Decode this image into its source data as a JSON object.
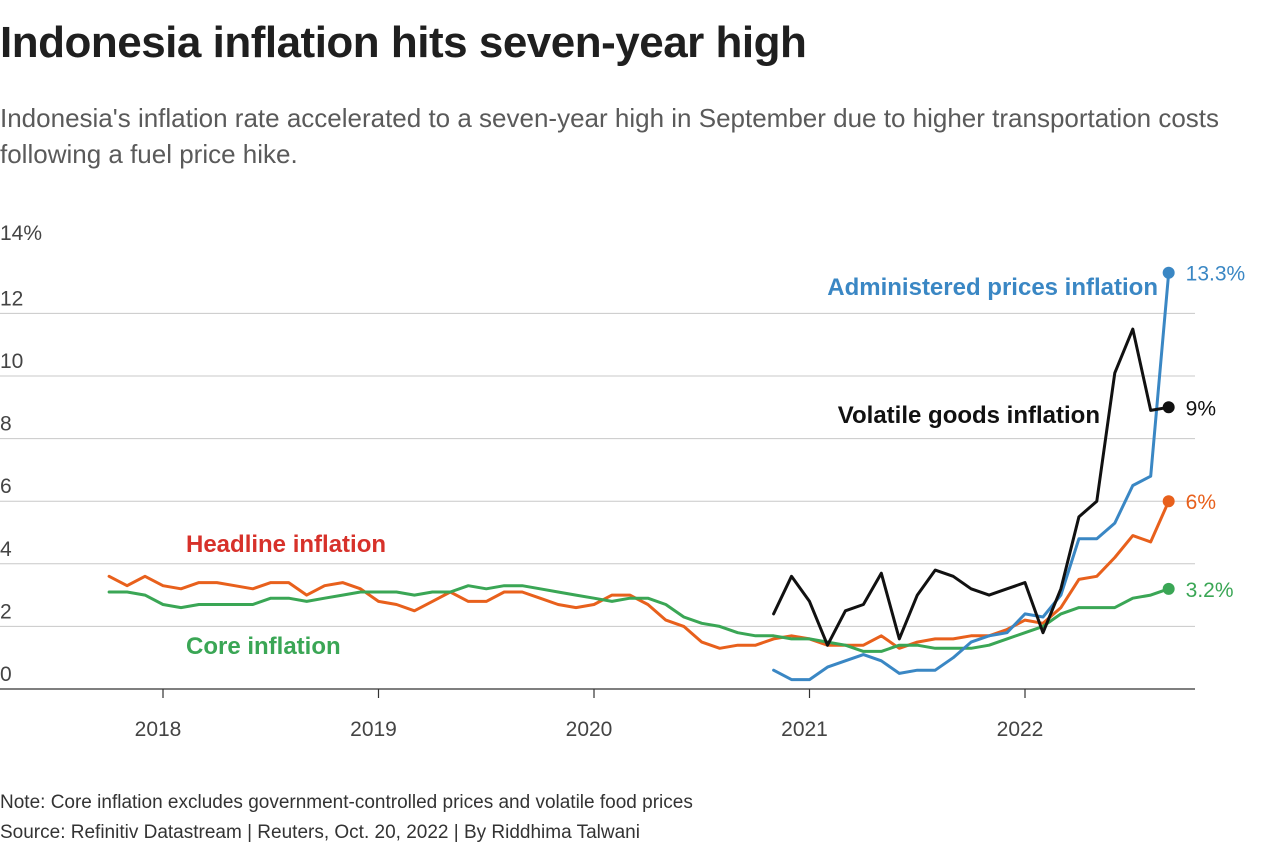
{
  "header": {
    "title": "Indonesia inflation hits seven-year high",
    "subtitle": "Indonesia's inflation rate accelerated to a seven-year high in September due to higher transportation costs following a fuel price hike."
  },
  "footer": {
    "note": "Note: Core inflation excludes government-controlled prices and volatile food prices",
    "source": "Source: Refinitiv Datastream | Reuters, Oct. 20, 2022 | By Riddhima Talwani"
  },
  "colors": {
    "headline": "#e8601c",
    "headline_label": "#d7312a",
    "core": "#3aa655",
    "administered": "#3a87c4",
    "volatile": "#111111",
    "grid": "#c8c8c8",
    "axis_text": "#444444"
  },
  "chart_data": {
    "type": "line",
    "title": "Indonesia inflation hits seven-year high",
    "xlabel": "",
    "ylabel": "",
    "y_unit_label": "14%",
    "ylim": [
      0,
      14
    ],
    "y_ticks": [
      0,
      2,
      4,
      6,
      8,
      10,
      12
    ],
    "x_ticks": [
      "2018",
      "2019",
      "2020",
      "2021",
      "2022"
    ],
    "grid": true,
    "series": [
      {
        "key": "headline",
        "name": "Headline inflation",
        "end_label": "6%",
        "start": "2017-10",
        "values": [
          3.6,
          3.3,
          3.6,
          3.3,
          3.2,
          3.4,
          3.4,
          3.3,
          3.2,
          3.4,
          3.4,
          3.0,
          3.3,
          3.4,
          3.2,
          2.8,
          2.7,
          2.5,
          2.8,
          3.1,
          2.8,
          2.8,
          3.1,
          3.1,
          2.9,
          2.7,
          2.6,
          2.7,
          3.0,
          3.0,
          2.7,
          2.2,
          2.0,
          1.5,
          1.3,
          1.4,
          1.4,
          1.6,
          1.7,
          1.6,
          1.4,
          1.4,
          1.4,
          1.7,
          1.3,
          1.5,
          1.6,
          1.6,
          1.7,
          1.7,
          1.9,
          2.2,
          2.1,
          2.6,
          3.5,
          3.6,
          4.2,
          4.9,
          4.7,
          6.0
        ]
      },
      {
        "key": "core",
        "name": "Core inflation",
        "end_label": "3.2%",
        "start": "2017-10",
        "values": [
          3.1,
          3.1,
          3.0,
          2.7,
          2.6,
          2.7,
          2.7,
          2.7,
          2.7,
          2.9,
          2.9,
          2.8,
          2.9,
          3.0,
          3.1,
          3.1,
          3.1,
          3.0,
          3.1,
          3.1,
          3.3,
          3.2,
          3.3,
          3.3,
          3.2,
          3.1,
          3.0,
          2.9,
          2.8,
          2.9,
          2.9,
          2.7,
          2.3,
          2.1,
          2.0,
          1.8,
          1.7,
          1.7,
          1.6,
          1.6,
          1.5,
          1.4,
          1.2,
          1.2,
          1.4,
          1.4,
          1.3,
          1.3,
          1.3,
          1.4,
          1.6,
          1.8,
          2.0,
          2.4,
          2.6,
          2.6,
          2.6,
          2.9,
          3.0,
          3.2
        ]
      },
      {
        "key": "administered",
        "name": "Administered prices inflation",
        "end_label": "13.3%",
        "start": "2020-11",
        "values": [
          0.6,
          0.3,
          0.3,
          0.7,
          0.9,
          1.1,
          0.9,
          0.5,
          0.6,
          0.6,
          1.0,
          1.5,
          1.7,
          1.8,
          2.4,
          2.3,
          3.0,
          4.8,
          4.8,
          5.3,
          6.5,
          6.8,
          13.3
        ]
      },
      {
        "key": "volatile",
        "name": "Volatile goods inflation",
        "end_label": "9%",
        "start": "2020-11",
        "values": [
          2.4,
          3.6,
          2.8,
          1.4,
          2.5,
          2.7,
          3.7,
          1.6,
          3.0,
          3.8,
          3.6,
          3.2,
          3.0,
          3.2,
          3.4,
          1.8,
          3.2,
          5.5,
          6.0,
          10.1,
          11.5,
          8.9,
          9.0
        ]
      }
    ]
  }
}
